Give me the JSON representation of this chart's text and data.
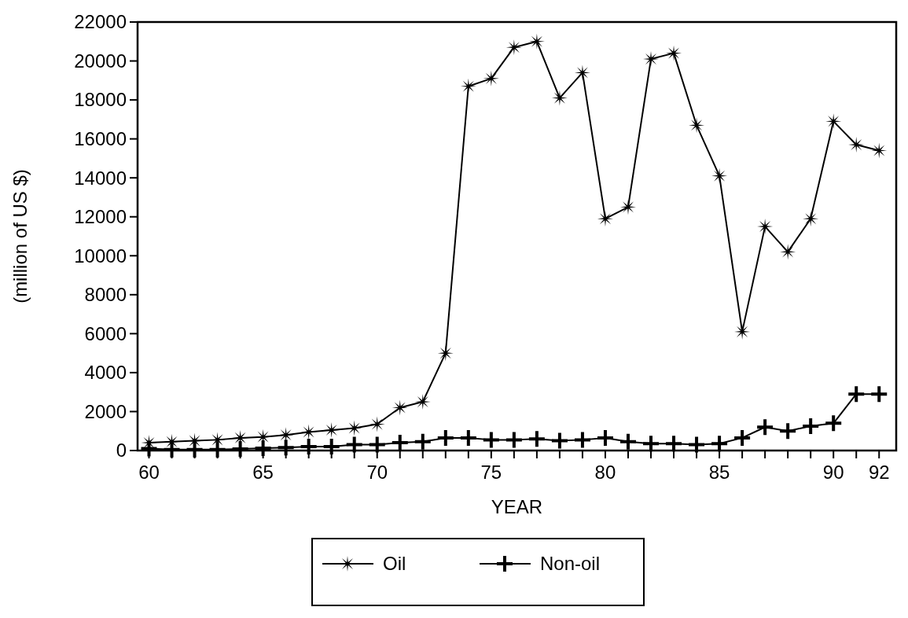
{
  "chart_data": {
    "type": "line",
    "xlabel": "YEAR",
    "ylabel": "(million of US $)",
    "x": [
      60,
      61,
      62,
      63,
      64,
      65,
      66,
      67,
      68,
      69,
      70,
      71,
      72,
      73,
      74,
      75,
      76,
      77,
      78,
      79,
      80,
      81,
      82,
      83,
      84,
      85,
      86,
      87,
      88,
      89,
      90,
      91,
      92
    ],
    "series": [
      {
        "name": "Oil",
        "color": "#000000",
        "marker": "star",
        "values": [
          400,
          450,
          500,
          550,
          650,
          700,
          800,
          950,
          1050,
          1150,
          1350,
          2200,
          2500,
          5000,
          18700,
          19100,
          20700,
          21000,
          18100,
          19400,
          11900,
          12500,
          20100,
          20400,
          16700,
          14100,
          6100,
          11500,
          10200,
          11900,
          16900,
          15700,
          15400
        ]
      },
      {
        "name": "Non-oil",
        "color": "#000000",
        "marker": "cross",
        "values": [
          100,
          50,
          50,
          50,
          80,
          120,
          150,
          200,
          200,
          300,
          300,
          400,
          450,
          650,
          650,
          550,
          550,
          600,
          500,
          550,
          650,
          450,
          350,
          350,
          300,
          350,
          650,
          1200,
          1000,
          1250,
          1400,
          2900,
          2900
        ]
      }
    ],
    "xlim": [
      59.5,
      92.75
    ],
    "xticks": [
      60,
      {
        "value": 61,
        "label": null
      },
      {
        "value": 62,
        "label": null
      },
      {
        "value": 63,
        "label": null
      },
      {
        "value": 64,
        "label": null
      },
      65,
      {
        "value": 66,
        "label": null
      },
      {
        "value": 67,
        "label": null
      },
      {
        "value": 68,
        "label": null
      },
      {
        "value": 69,
        "label": null
      },
      70,
      {
        "value": 71,
        "label": null
      },
      {
        "value": 72,
        "label": null
      },
      {
        "value": 73,
        "label": null
      },
      {
        "value": 74,
        "label": null
      },
      75,
      {
        "value": 76,
        "label": null
      },
      {
        "value": 77,
        "label": null
      },
      {
        "value": 78,
        "label": null
      },
      {
        "value": 79,
        "label": null
      },
      80,
      {
        "value": 81,
        "label": null
      },
      {
        "value": 82,
        "label": null
      },
      {
        "value": 83,
        "label": null
      },
      {
        "value": 84,
        "label": null
      },
      85,
      {
        "value": 86,
        "label": null
      },
      {
        "value": 87,
        "label": null
      },
      {
        "value": 88,
        "label": null
      },
      {
        "value": 89,
        "label": null
      },
      90,
      {
        "value": 91,
        "label": null
      },
      92
    ],
    "ylim": [
      0,
      22000
    ],
    "yticks": [
      0,
      2000,
      4000,
      6000,
      8000,
      10000,
      12000,
      14000,
      16000,
      18000,
      20000,
      22000
    ],
    "grid": false,
    "legend": "bottom",
    "line_style": "solid"
  }
}
